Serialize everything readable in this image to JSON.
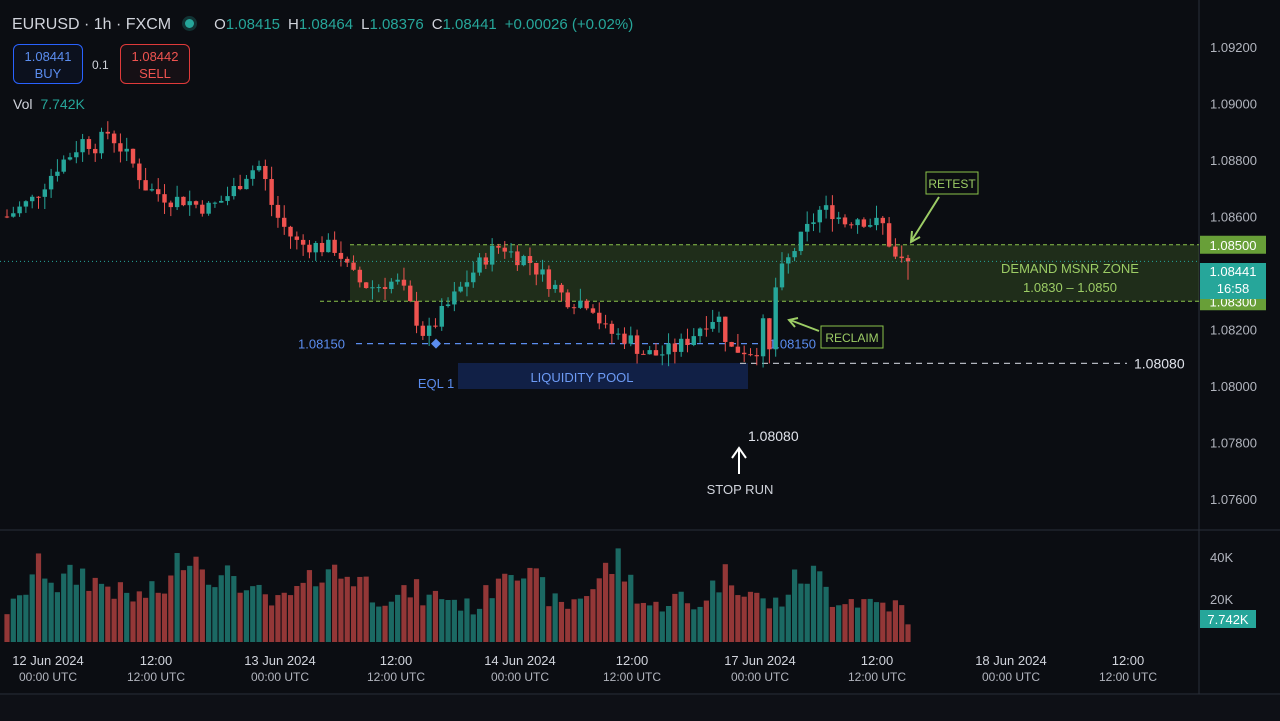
{
  "header": {
    "title": "EURUSD · 1h · FXCM",
    "o_label": "O",
    "o_value": "1.08415",
    "h_label": "H",
    "h_value": "1.08464",
    "l_label": "L",
    "l_value": "1.08376",
    "c_label": "C",
    "c_value": "1.08441",
    "change": "+0.00026 (+0.02%)"
  },
  "trade": {
    "buy_price": "1.08441",
    "buy_label": "BUY",
    "quantity": "0.1",
    "sell_price": "1.08442",
    "sell_label": "SELL"
  },
  "volume": {
    "label": "Vol",
    "value": "7.742K"
  },
  "colors": {
    "up": "#26a69a",
    "down": "#ef5350",
    "zone": "#8bc34a",
    "accent_blue": "#5b8def",
    "background": "#0b0d12"
  },
  "chart_data": {
    "type": "candlestick",
    "symbol": "EURUSD",
    "timeframe": "1h",
    "source": "FXCM",
    "ylim": [
      1.075,
      1.093
    ],
    "price_ticks": [
      "1.09200",
      "1.09000",
      "1.08800",
      "1.08600",
      "1.08200",
      "1.08000",
      "1.07800",
      "1.07600"
    ],
    "volume_ticks": [
      "40K",
      "20K"
    ],
    "time_ticks": [
      {
        "top": "12 Jun 2024",
        "bottom": "00:00 UTC"
      },
      {
        "top": "12:00",
        "bottom": "12:00 UTC"
      },
      {
        "top": "13 Jun 2024",
        "bottom": "00:00 UTC"
      },
      {
        "top": "12:00",
        "bottom": "12:00 UTC"
      },
      {
        "top": "14 Jun 2024",
        "bottom": "00:00 UTC"
      },
      {
        "top": "12:00",
        "bottom": "12:00 UTC"
      },
      {
        "top": "17 Jun 2024",
        "bottom": "00:00 UTC"
      },
      {
        "top": "12:00",
        "bottom": "12:00 UTC"
      },
      {
        "top": "18 Jun 2024",
        "bottom": "00:00 UTC"
      },
      {
        "top": "12:00",
        "bottom": "12:00 UTC"
      }
    ],
    "price_anchors": [
      1.086,
      1.0863,
      1.0866,
      1.0872,
      1.0878,
      1.0882,
      1.0887,
      1.0885,
      1.089,
      1.0884,
      1.0878,
      1.087,
      1.0868,
      1.0866,
      1.0866,
      1.0864,
      1.0863,
      1.0866,
      1.087,
      1.0876,
      1.0878,
      1.0862,
      1.0855,
      1.085,
      1.085,
      1.0849,
      1.0849,
      1.084,
      1.0836,
      1.0835,
      1.0837,
      1.0836,
      1.0826,
      1.0817,
      1.0824,
      1.083,
      1.0836,
      1.0842,
      1.0847,
      1.085,
      1.0846,
      1.0845,
      1.084,
      1.0836,
      1.0831,
      1.083,
      1.083,
      1.082,
      1.0818,
      1.0817,
      1.0812,
      1.0811,
      1.0812,
      1.0814,
      1.0818,
      1.0823,
      1.0825,
      1.0813,
      1.0813,
      1.0812,
      1.0828,
      1.084,
      1.0848,
      1.0855,
      1.0862,
      1.0862,
      1.0858,
      1.086,
      1.0858,
      1.0857,
      1.0845,
      1.0843
    ],
    "volume_anchors": [
      14,
      18,
      30,
      33,
      25,
      28,
      30,
      26,
      25,
      21,
      19,
      21,
      22,
      27,
      43,
      37,
      33,
      25,
      32,
      20,
      21,
      16,
      19,
      22,
      26,
      36,
      29,
      30,
      28,
      20,
      21,
      19,
      24,
      18,
      21,
      19,
      16,
      15,
      22,
      34,
      38,
      28,
      25,
      18,
      15,
      20,
      23,
      30,
      36,
      28,
      18,
      15,
      18,
      20,
      14,
      20,
      27,
      30,
      25,
      20,
      16,
      18,
      26,
      30,
      28,
      19,
      20,
      18,
      18,
      17,
      16,
      14
    ],
    "zones": [
      {
        "name": "DEMAND MSNR ZONE",
        "range_label": "1.0830 – 1.0850",
        "low": 1.083,
        "high": 1.085,
        "top_tag": "1.08500",
        "bottom_tag": "1.08300"
      }
    ],
    "levels": [
      {
        "label": "1.08150",
        "price": 1.0815,
        "style": "dashed",
        "color": "#5b8def"
      },
      {
        "label": "1.08080",
        "price": 1.0808,
        "style": "dashed",
        "color": "#d1d4dc"
      }
    ],
    "annotations": {
      "eql": "EQL 1",
      "liquidity_pool": "LIQUIDITY POOL",
      "reclaim": "RECLAIM",
      "retest": "RETEST",
      "stop_run": "STOP RUN",
      "stop_run_price": "1.08080",
      "eq_level_left": "1.08150",
      "eq_level_right": "1.08150",
      "low_level_right": "1.08080"
    },
    "last_price": {
      "value": "1.08441",
      "countdown": "16:58"
    },
    "last_volume": "7.742K"
  }
}
